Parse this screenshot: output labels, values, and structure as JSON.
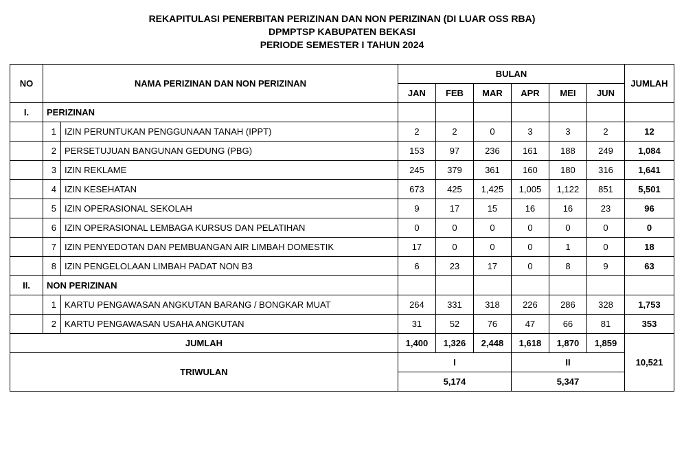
{
  "header": {
    "line1": "REKAPITULASI PENERBITAN PERIZINAN DAN NON PERIZINAN (DI LUAR OSS RBA)",
    "line2": "DPMPTSP KABUPATEN BEKASI",
    "line3": "PERIODE SEMESTER I TAHUN 2024"
  },
  "columns": {
    "no": "NO",
    "name": "NAMA PERIZINAN DAN NON PERIZINAN",
    "bulan": "BULAN",
    "months": [
      "JAN",
      "FEB",
      "MAR",
      "APR",
      "MEI",
      "JUN"
    ],
    "jumlah": "JUMLAH"
  },
  "sections": [
    {
      "no": "I.",
      "label": "PERIZINAN"
    },
    {
      "no": "II.",
      "label": "NON PERIZINAN"
    }
  ],
  "rows_perizinan": [
    {
      "n": "1",
      "name": "IZIN PERUNTUKAN PENGGUNAAN TANAH (IPPT)",
      "v": [
        "2",
        "2",
        "0",
        "3",
        "3",
        "2"
      ],
      "t": "12"
    },
    {
      "n": "2",
      "name": "PERSETUJUAN BANGUNAN GEDUNG (PBG)",
      "v": [
        "153",
        "97",
        "236",
        "161",
        "188",
        "249"
      ],
      "t": "1,084"
    },
    {
      "n": "3",
      "name": "IZIN REKLAME",
      "v": [
        "245",
        "379",
        "361",
        "160",
        "180",
        "316"
      ],
      "t": "1,641"
    },
    {
      "n": "4",
      "name": "IZIN KESEHATAN",
      "v": [
        "673",
        "425",
        "1,425",
        "1,005",
        "1,122",
        "851"
      ],
      "t": "5,501"
    },
    {
      "n": "5",
      "name": "IZIN OPERASIONAL SEKOLAH",
      "v": [
        "9",
        "17",
        "15",
        "16",
        "16",
        "23"
      ],
      "t": "96"
    },
    {
      "n": "6",
      "name": "IZIN OPERASIONAL LEMBAGA KURSUS DAN PELATIHAN",
      "v": [
        "0",
        "0",
        "0",
        "0",
        "0",
        "0"
      ],
      "t": "0"
    },
    {
      "n": "7",
      "name": "IZIN PENYEDOTAN DAN PEMBUANGAN AIR LIMBAH DOMESTIK",
      "v": [
        "17",
        "0",
        "0",
        "0",
        "1",
        "0"
      ],
      "t": "18"
    },
    {
      "n": "8",
      "name": "IZIN PENGELOLAAN LIMBAH PADAT NON B3",
      "v": [
        "6",
        "23",
        "17",
        "0",
        "8",
        "9"
      ],
      "t": "63"
    }
  ],
  "rows_non": [
    {
      "n": "1",
      "name": "KARTU PENGAWASAN ANGKUTAN BARANG / BONGKAR MUAT",
      "v": [
        "264",
        "331",
        "318",
        "226",
        "286",
        "328"
      ],
      "t": "1,753"
    },
    {
      "n": "2",
      "name": "KARTU PENGAWASAN USAHA ANGKUTAN",
      "v": [
        "31",
        "52",
        "76",
        "47",
        "66",
        "81"
      ],
      "t": "353"
    }
  ],
  "totals": {
    "label": "JUMLAH",
    "months": [
      "1,400",
      "1,326",
      "2,448",
      "1,618",
      "1,870",
      "1,859"
    ],
    "grand": "10,521"
  },
  "triwulan": {
    "label": "TRIWULAN",
    "q1_label": "I",
    "q1_value": "5,174",
    "q2_label": "II",
    "q2_value": "5,347"
  },
  "style": {
    "background_color": "#ffffff",
    "border_color": "#000000",
    "font_family": "Arial",
    "title_fontsize_pt": 14,
    "body_fontsize_pt": 13
  }
}
